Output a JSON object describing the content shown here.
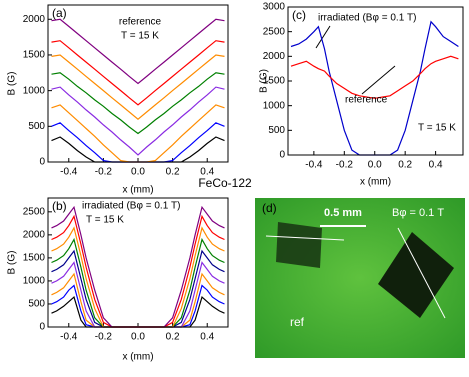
{
  "title": "FeCo-122",
  "chart_data": [
    {
      "type": "line",
      "panel_label": "(a)",
      "xlabel": "x (mm)",
      "ylabel": "B (G)",
      "annotations": [
        "reference",
        "T = 15 K"
      ],
      "xlim": [
        -0.52,
        0.52
      ],
      "xticks": [
        -0.4,
        -0.2,
        {
          "value": 0,
          "label": "0.0"
        },
        0.2,
        0.4
      ],
      "ylim": [
        0,
        2200
      ],
      "yticks": [
        0,
        500,
        1000,
        1500,
        2000
      ],
      "x": [
        -0.5,
        -0.45,
        -0.4,
        -0.35,
        -0.3,
        -0.25,
        -0.2,
        -0.15,
        -0.1,
        -0.05,
        0,
        0.05,
        0.1,
        0.15,
        0.2,
        0.25,
        0.3,
        0.35,
        0.4,
        0.45,
        0.5
      ],
      "series": [
        {
          "color": "#000000",
          "values": [
            300,
            350,
            260,
            160,
            70,
            0,
            0,
            0,
            0,
            0,
            0,
            0,
            0,
            0,
            0,
            0,
            70,
            160,
            260,
            350,
            300
          ]
        },
        {
          "color": "#0000ff",
          "values": [
            500,
            550,
            440,
            340,
            230,
            130,
            20,
            0,
            0,
            0,
            0,
            0,
            0,
            0,
            20,
            130,
            230,
            340,
            440,
            550,
            500
          ]
        },
        {
          "color": "#ff8c00",
          "values": [
            760,
            800,
            690,
            580,
            470,
            360,
            240,
            130,
            20,
            0,
            0,
            0,
            20,
            130,
            240,
            360,
            470,
            580,
            690,
            800,
            760
          ]
        },
        {
          "color": "#8a2be2",
          "values": [
            1020,
            1050,
            940,
            840,
            730,
            630,
            520,
            420,
            310,
            210,
            100,
            210,
            310,
            420,
            520,
            630,
            730,
            840,
            940,
            1050,
            1020
          ]
        },
        {
          "color": "#008000",
          "values": [
            1230,
            1250,
            1160,
            1060,
            970,
            870,
            780,
            680,
            590,
            490,
            400,
            490,
            590,
            680,
            780,
            870,
            970,
            1060,
            1160,
            1250,
            1230
          ]
        },
        {
          "color": "#ff8c00",
          "values": [
            1480,
            1500,
            1400,
            1300,
            1200,
            1100,
            1000,
            900,
            800,
            700,
            600,
            700,
            800,
            900,
            1000,
            1100,
            1200,
            1300,
            1400,
            1500,
            1480
          ]
        },
        {
          "color": "#ff0000",
          "values": [
            1680,
            1700,
            1600,
            1500,
            1400,
            1300,
            1200,
            1100,
            1000,
            900,
            800,
            900,
            1000,
            1100,
            1200,
            1300,
            1400,
            1500,
            1600,
            1700,
            1680
          ]
        },
        {
          "color": "#800080",
          "values": [
            1980,
            2000,
            1900,
            1800,
            1700,
            1600,
            1500,
            1400,
            1300,
            1200,
            1100,
            1200,
            1300,
            1400,
            1500,
            1600,
            1700,
            1800,
            1900,
            2000,
            1980
          ]
        }
      ]
    },
    {
      "type": "line",
      "panel_label": "(b)",
      "xlabel": "x (mm)",
      "ylabel": "B (G)",
      "annotations": [
        "irradiated (Bφ = 0.1 T)",
        "T = 15 K"
      ],
      "xlim": [
        -0.52,
        0.52
      ],
      "xticks": [
        -0.4,
        -0.2,
        {
          "value": 0,
          "label": "0.0"
        },
        0.2,
        0.4
      ],
      "ylim": [
        0,
        2800
      ],
      "yticks": [
        0,
        500,
        1000,
        1500,
        2000,
        2500
      ],
      "x": [
        -0.5,
        -0.47,
        -0.43,
        -0.4,
        -0.37,
        -0.33,
        -0.3,
        -0.25,
        -0.2,
        -0.15,
        0,
        0.15,
        0.2,
        0.25,
        0.3,
        0.33,
        0.37,
        0.4,
        0.43,
        0.47,
        0.5
      ],
      "series": [
        {
          "color": "#000000",
          "values": [
            300,
            350,
            450,
            550,
            650,
            150,
            0,
            0,
            0,
            0,
            0,
            0,
            0,
            0,
            0,
            150,
            650,
            550,
            450,
            350,
            300
          ]
        },
        {
          "color": "#0000ff",
          "values": [
            500,
            550,
            650,
            800,
            900,
            350,
            50,
            0,
            0,
            0,
            0,
            0,
            0,
            0,
            50,
            350,
            900,
            800,
            650,
            550,
            500
          ]
        },
        {
          "color": "#ff8c00",
          "values": [
            700,
            750,
            850,
            1000,
            1150,
            550,
            150,
            0,
            0,
            0,
            0,
            0,
            0,
            0,
            150,
            550,
            1150,
            1000,
            850,
            750,
            700
          ]
        },
        {
          "color": "#8a2be2",
          "values": [
            950,
            1000,
            1100,
            1250,
            1400,
            800,
            350,
            0,
            0,
            0,
            0,
            0,
            0,
            0,
            350,
            800,
            1400,
            1250,
            1100,
            1000,
            950
          ]
        },
        {
          "color": "#00008b",
          "values": [
            1200,
            1250,
            1350,
            1500,
            1650,
            1050,
            600,
            100,
            0,
            0,
            0,
            0,
            0,
            100,
            600,
            1050,
            1650,
            1500,
            1350,
            1250,
            1200
          ]
        },
        {
          "color": "#008000",
          "values": [
            1400,
            1450,
            1550,
            1700,
            1900,
            1300,
            800,
            200,
            0,
            0,
            0,
            0,
            0,
            200,
            800,
            1300,
            1900,
            1700,
            1550,
            1450,
            1400
          ]
        },
        {
          "color": "#ff8c00",
          "values": [
            1650,
            1700,
            1800,
            1950,
            2150,
            1550,
            1050,
            400,
            0,
            0,
            0,
            0,
            0,
            400,
            1050,
            1550,
            2150,
            1950,
            1800,
            1700,
            1650
          ]
        },
        {
          "color": "#ff0000",
          "values": [
            1900,
            1950,
            2050,
            2200,
            2400,
            1800,
            1300,
            600,
            100,
            0,
            0,
            0,
            100,
            600,
            1300,
            1800,
            2400,
            2200,
            2050,
            1950,
            1900
          ]
        },
        {
          "color": "#800080",
          "values": [
            2150,
            2200,
            2300,
            2450,
            2600,
            2000,
            1500,
            800,
            200,
            0,
            0,
            0,
            200,
            800,
            1500,
            2000,
            2600,
            2450,
            2300,
            2200,
            2150
          ]
        }
      ]
    },
    {
      "type": "line",
      "panel_label": "(c)",
      "xlabel": "x (mm)",
      "ylabel": "B (G)",
      "annotations": [
        "irradiated (Bφ = 0.1 T)",
        "reference",
        "T = 15 K"
      ],
      "xlim": [
        -0.57,
        0.58
      ],
      "xticks": [
        -0.4,
        -0.2,
        {
          "value": 0,
          "label": "0.0"
        },
        0.2,
        0.4
      ],
      "ylim": [
        0,
        3000
      ],
      "yticks": [
        0,
        500,
        1000,
        1500,
        2000,
        2500,
        3000
      ],
      "x": [
        -0.55,
        -0.5,
        -0.45,
        -0.4,
        -0.37,
        -0.33,
        -0.3,
        -0.25,
        -0.2,
        -0.15,
        -0.1,
        0,
        0.1,
        0.15,
        0.2,
        0.25,
        0.3,
        0.33,
        0.37,
        0.4,
        0.45,
        0.5,
        0.55
      ],
      "series": [
        {
          "color": "#0000cc",
          "values": [
            2200,
            2250,
            2350,
            2500,
            2600,
            2150,
            1700,
            1100,
            500,
            100,
            0,
            0,
            0,
            100,
            500,
            1100,
            1700,
            2150,
            2700,
            2600,
            2400,
            2300,
            2200
          ]
        },
        {
          "color": "#ff0000",
          "values": [
            1800,
            1850,
            1900,
            1800,
            1750,
            1700,
            1600,
            1450,
            1350,
            1250,
            1200,
            1150,
            1200,
            1300,
            1400,
            1500,
            1650,
            1750,
            1850,
            1900,
            1950,
            2000,
            1950
          ]
        }
      ]
    }
  ],
  "image": {
    "panel_label": "(d)",
    "scale_bar": "0.5 mm",
    "field_label": "Bφ = 0.1 T",
    "reference_label": "ref"
  }
}
